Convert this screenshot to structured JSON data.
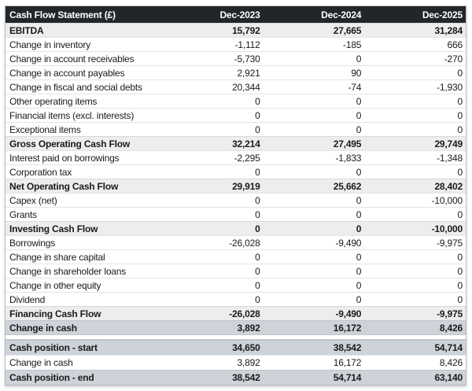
{
  "chart_data": {
    "type": "table",
    "title": "Cash Flow Statement (£)",
    "columns": [
      "Dec-2023",
      "Dec-2024",
      "Dec-2025"
    ],
    "rows": [
      {
        "label": "EBITDA",
        "values": [
          "15,792",
          "27,665",
          "31,284"
        ],
        "style": "subtotal"
      },
      {
        "label": "Change in inventory",
        "values": [
          "-1,112",
          "-185",
          "666"
        ],
        "style": "normal"
      },
      {
        "label": "Change in account receivables",
        "values": [
          "-5,730",
          "0",
          "-270"
        ],
        "style": "normal"
      },
      {
        "label": "Change in account payables",
        "values": [
          "2,921",
          "90",
          "0"
        ],
        "style": "normal"
      },
      {
        "label": "Change in fiscal and social debts",
        "values": [
          "20,344",
          "-74",
          "-1,930"
        ],
        "style": "normal"
      },
      {
        "label": "Other operating items",
        "values": [
          "0",
          "0",
          "0"
        ],
        "style": "normal"
      },
      {
        "label": "Financial items (excl. interests)",
        "values": [
          "0",
          "0",
          "0"
        ],
        "style": "normal"
      },
      {
        "label": "Exceptional items",
        "values": [
          "0",
          "0",
          "0"
        ],
        "style": "normal"
      },
      {
        "label": "Gross Operating Cash Flow",
        "values": [
          "32,214",
          "27,495",
          "29,749"
        ],
        "style": "subtotal"
      },
      {
        "label": "Interest paid on borrowings",
        "values": [
          "-2,295",
          "-1,833",
          "-1,348"
        ],
        "style": "normal"
      },
      {
        "label": "Corporation tax",
        "values": [
          "0",
          "0",
          "0"
        ],
        "style": "normal"
      },
      {
        "label": "Net Operating Cash Flow",
        "values": [
          "29,919",
          "25,662",
          "28,402"
        ],
        "style": "subtotal"
      },
      {
        "label": "Capex (net)",
        "values": [
          "0",
          "0",
          "-10,000"
        ],
        "style": "normal"
      },
      {
        "label": "Grants",
        "values": [
          "0",
          "0",
          "0"
        ],
        "style": "normal"
      },
      {
        "label": "Investing Cash Flow",
        "values": [
          "0",
          "0",
          "-10,000"
        ],
        "style": "subtotal"
      },
      {
        "label": "Borrowings",
        "values": [
          "-26,028",
          "-9,490",
          "-9,975"
        ],
        "style": "normal"
      },
      {
        "label": "Change in share capital",
        "values": [
          "0",
          "0",
          "0"
        ],
        "style": "normal"
      },
      {
        "label": "Change in shareholder loans",
        "values": [
          "0",
          "0",
          "0"
        ],
        "style": "normal"
      },
      {
        "label": "Change in other equity",
        "values": [
          "0",
          "0",
          "0"
        ],
        "style": "normal"
      },
      {
        "label": "Dividend",
        "values": [
          "0",
          "0",
          "0"
        ],
        "style": "normal"
      },
      {
        "label": "Financing Cash Flow",
        "values": [
          "-26,028",
          "-9,490",
          "-9,975"
        ],
        "style": "subtotal"
      },
      {
        "label": "Change in cash",
        "values": [
          "3,892",
          "16,172",
          "8,426"
        ],
        "style": "highlight"
      },
      {
        "label": "",
        "values": [
          "",
          "",
          ""
        ],
        "style": "spacer"
      },
      {
        "label": "Cash position - start",
        "values": [
          "34,650",
          "38,542",
          "54,714"
        ],
        "style": "highlight"
      },
      {
        "label": "Change in cash",
        "values": [
          "3,892",
          "16,172",
          "8,426"
        ],
        "style": "normal"
      },
      {
        "label": "Cash position - end",
        "values": [
          "38,542",
          "54,714",
          "63,140"
        ],
        "style": "highlight"
      }
    ],
    "layout": {
      "grid": false,
      "legend": "none",
      "value_alignment": "right"
    },
    "colors": {
      "header_bg": "#22262a",
      "header_text": "#ffffff",
      "subtotal_bg": "#ededee",
      "highlight_bg": "#ced3da",
      "row_border": "#e3e4e6",
      "table_border": "#b9bcc0"
    }
  }
}
